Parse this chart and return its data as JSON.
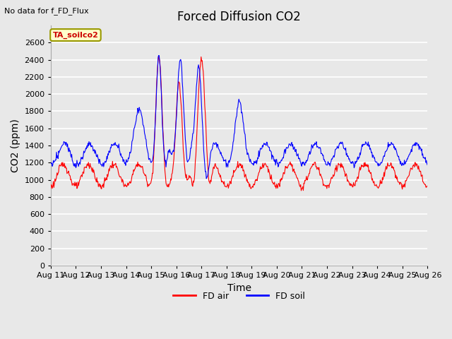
{
  "title": "Forced Diffusion CO2",
  "top_left_text": "No data for f_FD_Flux",
  "annotation_box": "TA_soilco2",
  "xlabel": "Time",
  "ylabel": "CO2 (ppm)",
  "ylim": [
    0,
    2800
  ],
  "yticks": [
    0,
    200,
    400,
    600,
    800,
    1000,
    1200,
    1400,
    1600,
    1800,
    2000,
    2200,
    2400,
    2600
  ],
  "x_labels": [
    "Aug 11",
    "Aug 12",
    "Aug 13",
    "Aug 14",
    "Aug 15",
    "Aug 16",
    "Aug 17",
    "Aug 18",
    "Aug 19",
    "Aug 20",
    "Aug 21",
    "Aug 22",
    "Aug 23",
    "Aug 24",
    "Aug 25",
    "Aug 26"
  ],
  "plot_bg_color": "#e8e8e8",
  "grid_color": "#ffffff",
  "red_color": "#ff0000",
  "blue_color": "#0000ff",
  "legend_entries": [
    "FD air",
    "FD soil"
  ],
  "title_fontsize": 12,
  "axis_label_fontsize": 10,
  "tick_fontsize": 8,
  "figsize": [
    6.4,
    4.8
  ],
  "dpi": 100
}
